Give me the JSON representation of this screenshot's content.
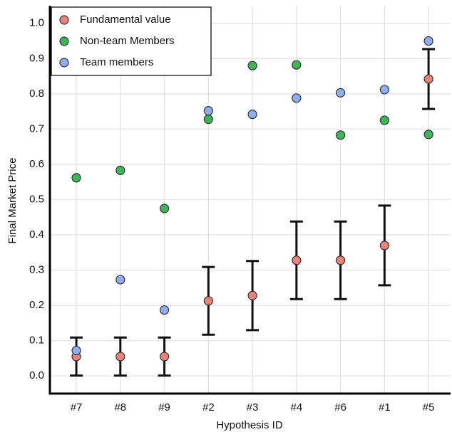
{
  "chart_data": {
    "type": "scatter",
    "x_label": "Hypothesis ID",
    "y_label": "Final Market Price",
    "categories": [
      "#7",
      "#8",
      "#9",
      "#2",
      "#3",
      "#4",
      "#6",
      "#1",
      "#5"
    ],
    "series": [
      {
        "name": "Fundamental value",
        "color": "#e8827a",
        "values": [
          0.055,
          0.055,
          0.055,
          0.213,
          0.228,
          0.328,
          0.328,
          0.37,
          0.842
        ],
        "errors": [
          0.054,
          0.054,
          0.054,
          0.096,
          0.098,
          0.11,
          0.11,
          0.113,
          0.085
        ]
      },
      {
        "name": "Non-team Members",
        "color": "#3fb55a",
        "values": [
          0.562,
          0.583,
          0.475,
          0.728,
          0.88,
          0.882,
          0.683,
          0.725,
          0.685
        ]
      },
      {
        "name": "Team members",
        "color": "#8eaef0",
        "values": [
          0.072,
          0.273,
          0.187,
          0.752,
          0.742,
          0.788,
          0.803,
          0.812,
          0.95
        ]
      }
    ],
    "ylim": [
      -0.05,
      1.05
    ],
    "yticks": [
      {
        "value": 0,
        "label": "0.0"
      },
      0.1,
      0.2,
      0.3,
      0.4,
      0.5,
      0.6,
      0.7,
      0.8,
      0.9,
      {
        "value": 1,
        "label": "1.0"
      }
    ],
    "grid": true,
    "legend": "upper-left"
  }
}
